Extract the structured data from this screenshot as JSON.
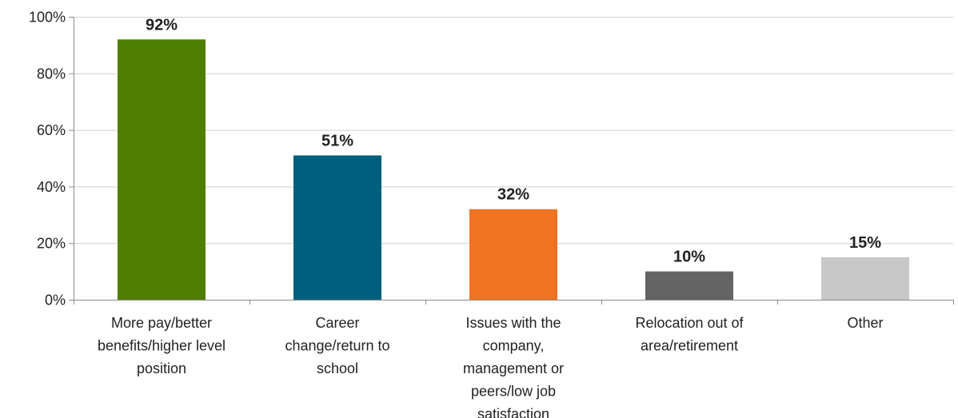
{
  "chart_data": {
    "type": "bar",
    "title": "",
    "xlabel": "",
    "ylabel": "",
    "ylim": [
      0,
      100
    ],
    "y_ticks": [
      0,
      20,
      40,
      60,
      80,
      100
    ],
    "y_tick_labels": [
      "0%",
      "20%",
      "40%",
      "60%",
      "80%",
      "100%"
    ],
    "grid": true,
    "legend": "none",
    "categories": [
      [
        "More pay/better",
        "benefits/higher level",
        "position"
      ],
      [
        "Career",
        "change/return to",
        "school"
      ],
      [
        "Issues with the",
        "company,",
        "management or",
        "peers/low job",
        "satisfaction"
      ],
      [
        "Relocation out of",
        "area/retirement"
      ],
      [
        "Other"
      ]
    ],
    "values": [
      92,
      51,
      32,
      10,
      15
    ],
    "data_labels": [
      "92%",
      "51%",
      "32%",
      "10%",
      "15%"
    ],
    "colors": [
      "#4e7f00",
      "#005f7d",
      "#ef7320",
      "#646464",
      "#c8c8c8"
    ]
  }
}
